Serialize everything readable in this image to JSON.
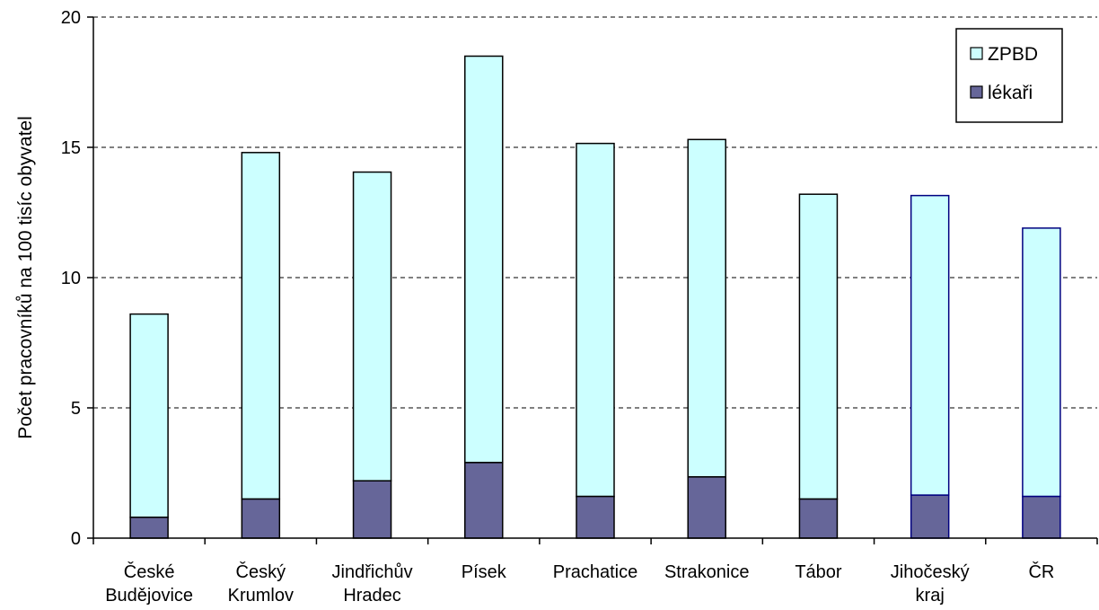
{
  "chart_data": {
    "type": "bar",
    "stacked": true,
    "categories": [
      [
        "České",
        "Budějovice"
      ],
      [
        "Český",
        "Krumlov"
      ],
      [
        "Jindřichův",
        "Hradec"
      ],
      [
        "Písek"
      ],
      [
        "Prachatice"
      ],
      [
        "Strakonice"
      ],
      [
        "Tábor"
      ],
      [
        "Jihočeský",
        "kraj"
      ],
      [
        "ČR"
      ]
    ],
    "series": [
      {
        "name": "lékaři",
        "color": "#666699",
        "values": [
          0.8,
          1.5,
          2.2,
          2.9,
          1.6,
          2.35,
          1.5,
          1.65,
          1.6
        ]
      },
      {
        "name": "ZPBD",
        "color": "#ccffff",
        "values": [
          7.8,
          13.3,
          11.85,
          15.6,
          13.55,
          12.95,
          11.7,
          11.5,
          10.3
        ]
      }
    ],
    "totals": [
      8.6,
      14.8,
      14.05,
      18.5,
      15.15,
      15.3,
      13.2,
      13.15,
      11.9
    ],
    "ylabel": "Počet pracovníků na 100 tisíc obyvatel",
    "xlabel": "",
    "ylim": [
      0,
      20
    ],
    "yticks": [
      0,
      5,
      10,
      15,
      20
    ],
    "grid": "horizontal dashed",
    "legend": {
      "position": "top-right",
      "items": [
        "ZPBD",
        "lékaři"
      ]
    }
  }
}
